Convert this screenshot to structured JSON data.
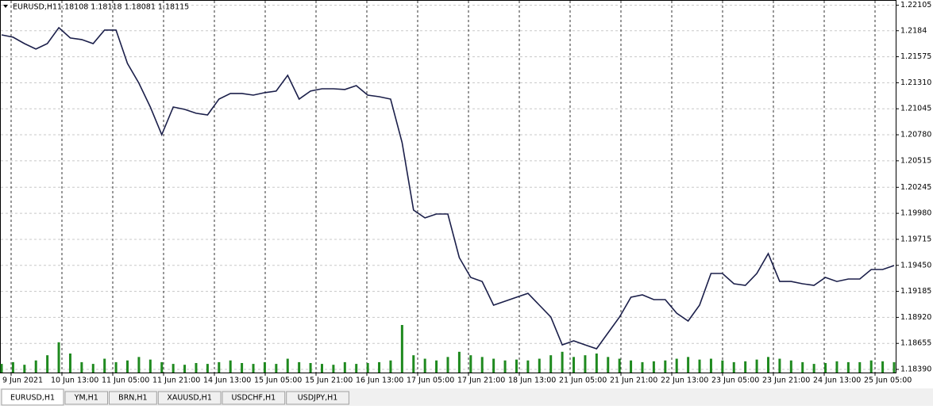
{
  "header": {
    "symbol": "EURUSD,H1",
    "quote": "1.18108 1.18118 1.18081 1.18115"
  },
  "chart_data": {
    "type": "line",
    "color": "#1b1f4a",
    "volume_color": "#1f8a1f",
    "grid": true,
    "ylim": [
      1.18358,
      1.22153
    ],
    "yticks": [
      {
        "value": 1.221,
        "label": "1.22105"
      },
      1.2184,
      1.21575,
      {
        "value": 1.2131,
        "label": "1.21310"
      },
      1.21045,
      {
        "value": 1.2078,
        "label": "1.20780"
      },
      1.20515,
      1.20245,
      {
        "value": 1.1998,
        "label": "1.19980"
      },
      1.19715,
      {
        "value": 1.1945,
        "label": "1.19450"
      },
      1.19185,
      {
        "value": 1.1892,
        "label": "1.18920"
      },
      1.18655,
      {
        "value": 1.1839,
        "label": "1.18390"
      }
    ],
    "time_labels": [
      "9 Jun 2021",
      "10 Jun 13:00",
      "11 Jun 05:00",
      "11 Jun 21:00",
      "14 Jun 13:00",
      "15 Jun 05:00",
      "15 Jun 21:00",
      "16 Jun 13:00",
      "17 Jun 05:00",
      "17 Jun 21:00",
      "18 Jun 13:00",
      "21 Jun 05:00",
      "21 Jun 21:00",
      "22 Jun 13:00",
      "23 Jun 05:00",
      "23 Jun 21:00",
      "24 Jun 13:00",
      "25 Jun 05:00"
    ],
    "values": [
      1.21798,
      1.21774,
      1.21709,
      1.21653,
      1.21709,
      1.21871,
      1.21766,
      1.2175,
      1.21709,
      1.21847,
      1.21847,
      1.21507,
      1.21306,
      1.21063,
      1.20781,
      1.21063,
      1.21039,
      1.20999,
      1.20982,
      1.21144,
      1.21201,
      1.21201,
      1.21184,
      1.21209,
      1.21225,
      1.21386,
      1.21144,
      1.21225,
      1.21249,
      1.21249,
      1.21241,
      1.21281,
      1.21184,
      1.21168,
      1.21144,
      1.207,
      1.20013,
      1.19933,
      1.19973,
      1.19973,
      1.19529,
      1.19327,
      1.19286,
      1.19044,
      1.19085,
      1.19125,
      1.19165,
      1.19044,
      1.18923,
      1.1864,
      1.18681,
      1.1864,
      1.186,
      1.18762,
      1.18923,
      1.19125,
      1.19149,
      1.19101,
      1.19101,
      1.18963,
      1.18883,
      1.19044,
      1.19367,
      1.19367,
      1.19262,
      1.19246,
      1.19367,
      1.19569,
      1.19286,
      1.19286,
      1.19262,
      1.19246,
      1.19327,
      1.19286,
      1.19311,
      1.19311,
      1.19408,
      1.19408,
      1.19448
    ],
    "volumes": [
      10,
      12,
      9,
      14,
      20,
      35,
      22,
      12,
      10,
      16,
      12,
      14,
      18,
      15,
      12,
      10,
      9,
      11,
      10,
      12,
      14,
      11,
      10,
      12,
      10,
      16,
      12,
      11,
      10,
      9,
      12,
      10,
      11,
      12,
      14,
      55,
      20,
      16,
      14,
      18,
      24,
      20,
      18,
      16,
      14,
      15,
      14,
      16,
      20,
      24,
      18,
      20,
      22,
      18,
      16,
      14,
      12,
      13,
      14,
      16,
      18,
      15,
      16,
      14,
      12,
      13,
      15,
      18,
      16,
      14,
      12,
      10,
      11,
      13,
      12,
      12,
      14,
      13,
      12
    ]
  },
  "tabs": [
    "EURUSD,H1",
    "YM,H1",
    "BRN,H1",
    "XAUUSD,H1",
    "USDCHF,H1",
    "USDJPY,H1"
  ]
}
